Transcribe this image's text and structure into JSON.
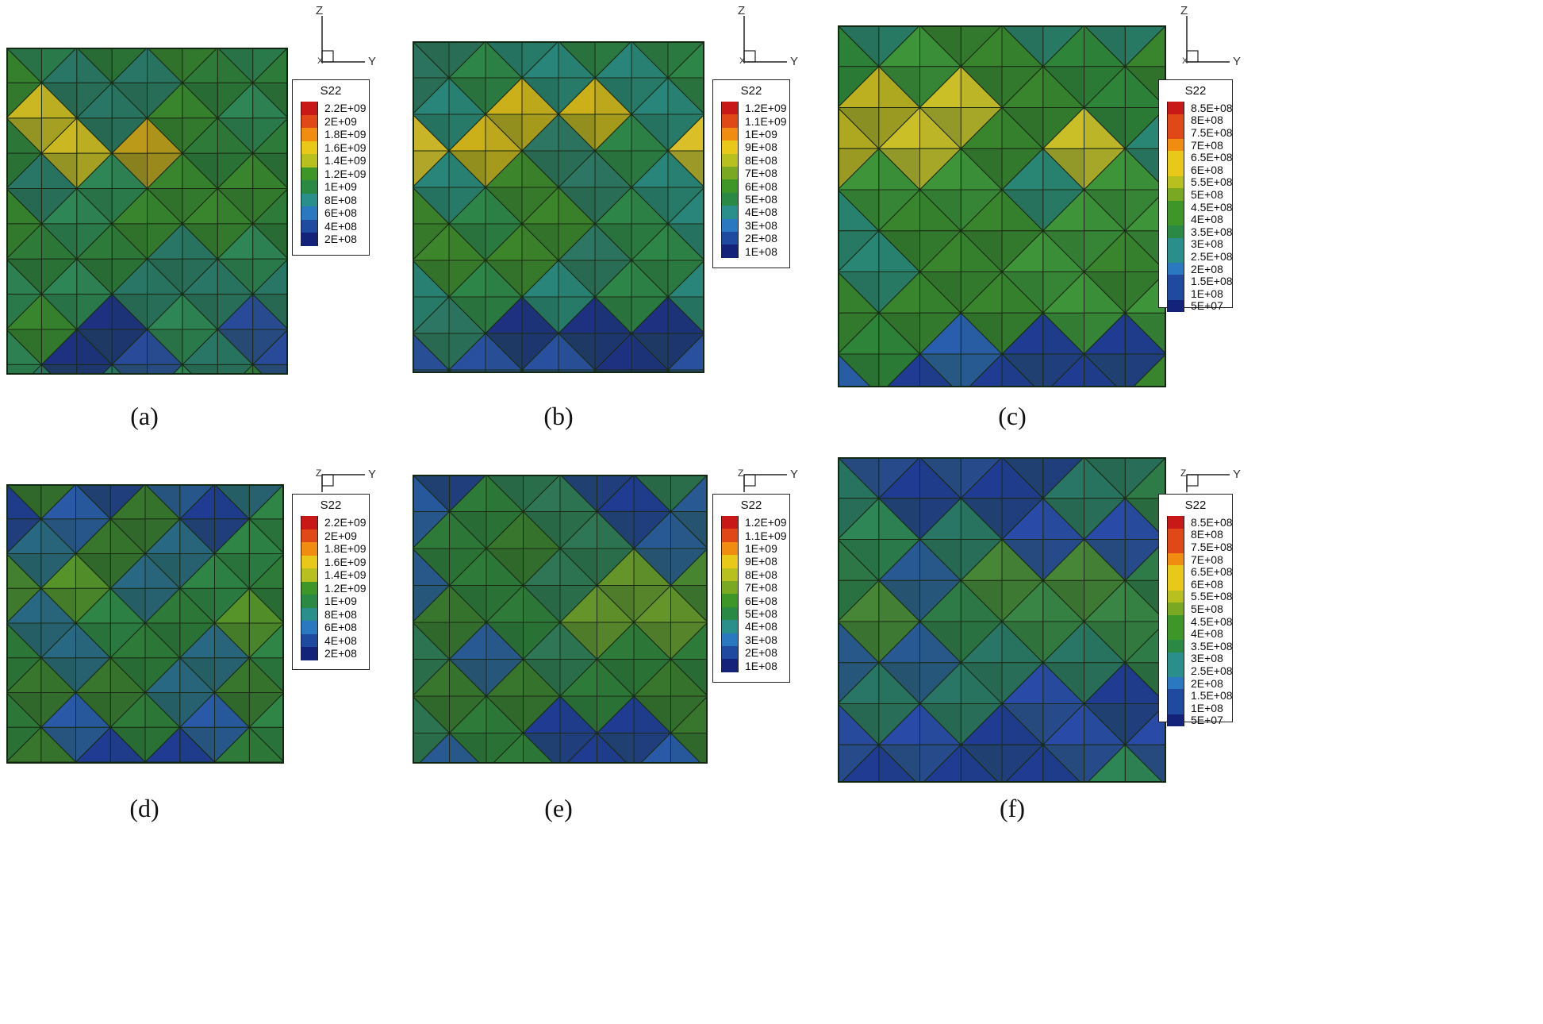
{
  "panels": [
    {
      "id": "a",
      "caption": "(a)",
      "axis": {
        "up": "Z",
        "right": "Y",
        "center": "X"
      },
      "legend": {
        "title": "S22",
        "labels": [
          "2.2E+09",
          "2E+09",
          "1.8E+09",
          "1.6E+09",
          "1.4E+09",
          "1.2E+09",
          "1E+09",
          "8E+08",
          "6E+08",
          "4E+08",
          "2E+08"
        ]
      }
    },
    {
      "id": "b",
      "caption": "(b)",
      "axis": {
        "up": "Z",
        "right": "Y",
        "center": "X"
      },
      "legend": {
        "title": "S22",
        "labels": [
          "1.2E+09",
          "1.1E+09",
          "1E+09",
          "9E+08",
          "8E+08",
          "7E+08",
          "6E+08",
          "5E+08",
          "4E+08",
          "3E+08",
          "2E+08",
          "1E+08"
        ]
      }
    },
    {
      "id": "c",
      "caption": "(c)",
      "axis": {
        "up": "Z",
        "right": "Y",
        "center": "X"
      },
      "legend": {
        "title": "S22",
        "labels": [
          "8.5E+08",
          "8E+08",
          "7.5E+08",
          "7E+08",
          "6.5E+08",
          "6E+08",
          "5.5E+08",
          "5E+08",
          "4.5E+08",
          "4E+08",
          "3.5E+08",
          "3E+08",
          "2.5E+08",
          "2E+08",
          "1.5E+08",
          "1E+08",
          "5E+07"
        ]
      }
    },
    {
      "id": "d",
      "caption": "(d)",
      "axis": {
        "up": "Z",
        "right": "Y",
        "center": "X"
      },
      "legend": {
        "title": "S22",
        "labels": [
          "2.2E+09",
          "2E+09",
          "1.8E+09",
          "1.6E+09",
          "1.4E+09",
          "1.2E+09",
          "1E+09",
          "8E+08",
          "6E+08",
          "4E+08",
          "2E+08"
        ]
      }
    },
    {
      "id": "e",
      "caption": "(e)",
      "axis": {
        "up": "Z",
        "right": "Y",
        "center": "X"
      },
      "legend": {
        "title": "S22",
        "labels": [
          "1.2E+09",
          "1.1E+09",
          "1E+09",
          "9E+08",
          "8E+08",
          "7E+08",
          "6E+08",
          "5E+08",
          "4E+08",
          "3E+08",
          "2E+08",
          "1E+08"
        ]
      }
    },
    {
      "id": "f",
      "caption": "(f)",
      "axis": {
        "up": "Z",
        "right": "Y",
        "center": "X"
      },
      "legend": {
        "title": "S22",
        "labels": [
          "8.5E+08",
          "8E+08",
          "7.5E+08",
          "7E+08",
          "6.5E+08",
          "6E+08",
          "5.5E+08",
          "5E+08",
          "4.5E+08",
          "4E+08",
          "3.5E+08",
          "3E+08",
          "2.5E+08",
          "2E+08",
          "1.5E+08",
          "1E+08",
          "5E+07"
        ]
      }
    }
  ],
  "colors": {
    "scale": [
      "#c81818",
      "#e04818",
      "#f08c10",
      "#e8c818",
      "#b8c020",
      "#7aa822",
      "#3f9628",
      "#2a8a45",
      "#2a8f8a",
      "#2a78c0",
      "#1f4aa0",
      "#15227a"
    ],
    "lattice_lines": "#1a2a14"
  }
}
